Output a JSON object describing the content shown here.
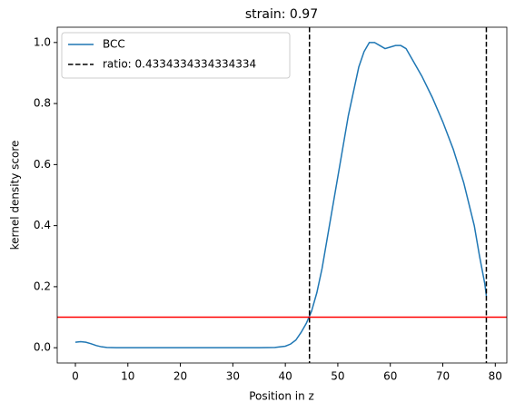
{
  "chart_data": {
    "type": "line",
    "title": "strain: 0.97",
    "xlabel": "Position in z",
    "ylabel": "kernel density score",
    "x": [
      0,
      1,
      2,
      3,
      4,
      5,
      6,
      8,
      10,
      15,
      20,
      25,
      30,
      35,
      38,
      40,
      41,
      42,
      43,
      44,
      45,
      46,
      47,
      48,
      50,
      52,
      54,
      55,
      56,
      57,
      58,
      59,
      60,
      61,
      62,
      63,
      64,
      66,
      68,
      70,
      72,
      74,
      76,
      77,
      78,
      78.3
    ],
    "series": [
      {
        "name": "BCC",
        "color": "#1f77b4",
        "values": [
          0.018,
          0.02,
          0.018,
          0.013,
          0.007,
          0.003,
          0.001,
          0,
          0,
          0,
          0,
          0,
          0,
          0,
          0.001,
          0.005,
          0.012,
          0.025,
          0.05,
          0.08,
          0.12,
          0.18,
          0.26,
          0.36,
          0.56,
          0.76,
          0.92,
          0.97,
          1.0,
          1.0,
          0.99,
          0.98,
          0.985,
          0.99,
          0.99,
          0.98,
          0.95,
          0.89,
          0.82,
          0.74,
          0.65,
          0.54,
          0.4,
          0.3,
          0.21,
          0.17
        ]
      }
    ],
    "vlines": {
      "name": "ratio: 0.4334334334334334",
      "color": "#000000",
      "x": [
        44.6,
        78.3
      ]
    },
    "hline": {
      "value": 0.1,
      "color": "#ff0000"
    },
    "xlim": [
      -3.46,
      82.2
    ],
    "ylim": [
      -0.05,
      1.05
    ],
    "xticks": [
      0,
      10,
      20,
      30,
      40,
      50,
      60,
      70,
      80
    ],
    "yticks": [
      {
        "value": 0,
        "label": "0.0"
      },
      {
        "value": 0.2,
        "label": "0.2"
      },
      {
        "value": 0.4,
        "label": "0.4"
      },
      {
        "value": 0.6,
        "label": "0.6"
      },
      {
        "value": 0.8,
        "label": "0.8"
      },
      {
        "value": 1,
        "label": "1.0"
      }
    ],
    "legend": "upper left"
  }
}
